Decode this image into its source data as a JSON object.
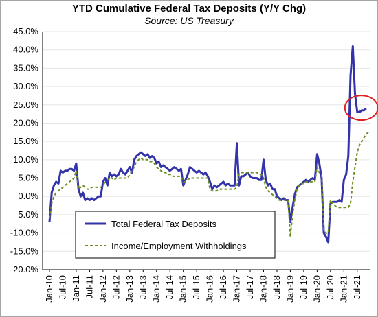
{
  "chart_data": {
    "type": "line",
    "title": "YTD Cumulative Federal Tax Deposits (Y/Y Chg)",
    "subtitle": "Source: US Treasury",
    "xlabel": "",
    "ylabel": "",
    "ylim": [
      -20,
      45
    ],
    "yticks": [
      "45.0%",
      "40.0%",
      "35.0%",
      "30.0%",
      "25.0%",
      "20.0%",
      "15.0%",
      "10.0%",
      "5.0%",
      "0.0%",
      "-5.0%",
      "-10.0%",
      "-15.0%",
      "-20.0%"
    ],
    "xlim": [
      "2010-01",
      "2021-12"
    ],
    "xticks": [
      "Jan-10",
      "Jul-10",
      "Jan-11",
      "Jul-11",
      "Jan-12",
      "Jul-12",
      "Jan-13",
      "Jul-13",
      "Jan-14",
      "Jul-14",
      "Jan-15",
      "Jul-15",
      "Jan-16",
      "Jul-16",
      "Jan-17",
      "Jul-17",
      "Jan-18",
      "Jul-18",
      "Jan-19",
      "Jul-19",
      "Jan-20",
      "Jul-20",
      "Jan-21",
      "Jul-21"
    ],
    "grid": "horizontal",
    "legend_position": "bottom-left",
    "annotation": "red circle around latest Total Federal Tax Deposits values",
    "series": [
      {
        "name": "Total Federal Tax Deposits",
        "color": "#3333aa",
        "style": "solid",
        "points": [
          [
            "2010-01",
            -7
          ],
          [
            "2010-02",
            1
          ],
          [
            "2010-03",
            3
          ],
          [
            "2010-04",
            4
          ],
          [
            "2010-05",
            3.5
          ],
          [
            "2010-06",
            7
          ],
          [
            "2010-07",
            6.5
          ],
          [
            "2010-08",
            7
          ],
          [
            "2010-09",
            7
          ],
          [
            "2010-10",
            7.5
          ],
          [
            "2010-11",
            7.5
          ],
          [
            "2010-12",
            7
          ],
          [
            "2011-01",
            9
          ],
          [
            "2011-02",
            2
          ],
          [
            "2011-03",
            0
          ],
          [
            "2011-04",
            1
          ],
          [
            "2011-05",
            -1
          ],
          [
            "2011-06",
            -0.5
          ],
          [
            "2011-07",
            -1
          ],
          [
            "2011-08",
            -0.5
          ],
          [
            "2011-09",
            -1
          ],
          [
            "2011-10",
            -0.5
          ],
          [
            "2011-11",
            0
          ],
          [
            "2011-12",
            0
          ],
          [
            "2012-01",
            4
          ],
          [
            "2012-02",
            5
          ],
          [
            "2012-03",
            3
          ],
          [
            "2012-04",
            6.5
          ],
          [
            "2012-05",
            5.5
          ],
          [
            "2012-06",
            6
          ],
          [
            "2012-07",
            5.5
          ],
          [
            "2012-08",
            6
          ],
          [
            "2012-09",
            7.5
          ],
          [
            "2012-10",
            6.5
          ],
          [
            "2012-11",
            6
          ],
          [
            "2012-12",
            7
          ],
          [
            "2013-01",
            8
          ],
          [
            "2013-02",
            6.5
          ],
          [
            "2013-03",
            10
          ],
          [
            "2013-04",
            11
          ],
          [
            "2013-05",
            11.5
          ],
          [
            "2013-06",
            12
          ],
          [
            "2013-07",
            11.5
          ],
          [
            "2013-08",
            11
          ],
          [
            "2013-09",
            11.5
          ],
          [
            "2013-10",
            10.5
          ],
          [
            "2013-11",
            11
          ],
          [
            "2013-12",
            10.5
          ],
          [
            "2014-01",
            9
          ],
          [
            "2014-02",
            9.5
          ],
          [
            "2014-03",
            8
          ],
          [
            "2014-04",
            8.5
          ],
          [
            "2014-05",
            8
          ],
          [
            "2014-06",
            7.5
          ],
          [
            "2014-07",
            7
          ],
          [
            "2014-08",
            7.5
          ],
          [
            "2014-09",
            8
          ],
          [
            "2014-10",
            7.5
          ],
          [
            "2014-11",
            7
          ],
          [
            "2014-12",
            7.5
          ],
          [
            "2015-01",
            3
          ],
          [
            "2015-02",
            4.5
          ],
          [
            "2015-03",
            6
          ],
          [
            "2015-04",
            8
          ],
          [
            "2015-05",
            7.5
          ],
          [
            "2015-06",
            7
          ],
          [
            "2015-07",
            6.5
          ],
          [
            "2015-08",
            7
          ],
          [
            "2015-09",
            6.5
          ],
          [
            "2015-10",
            6
          ],
          [
            "2015-11",
            6.5
          ],
          [
            "2015-12",
            5.5
          ],
          [
            "2016-01",
            4
          ],
          [
            "2016-02",
            2
          ],
          [
            "2016-03",
            3
          ],
          [
            "2016-04",
            2.5
          ],
          [
            "2016-05",
            3
          ],
          [
            "2016-06",
            3.5
          ],
          [
            "2016-07",
            4
          ],
          [
            "2016-08",
            3
          ],
          [
            "2016-09",
            3.5
          ],
          [
            "2016-10",
            3
          ],
          [
            "2016-11",
            3
          ],
          [
            "2016-12",
            3
          ],
          [
            "2017-01",
            14.5
          ],
          [
            "2017-02",
            3
          ],
          [
            "2017-03",
            5.5
          ],
          [
            "2017-04",
            5.5
          ],
          [
            "2017-05",
            6
          ],
          [
            "2017-06",
            6.5
          ],
          [
            "2017-07",
            5.5
          ],
          [
            "2017-08",
            5
          ],
          [
            "2017-09",
            5
          ],
          [
            "2017-10",
            5
          ],
          [
            "2017-11",
            4.5
          ],
          [
            "2017-12",
            4.5
          ],
          [
            "2018-01",
            10
          ],
          [
            "2018-02",
            4.5
          ],
          [
            "2018-03",
            3
          ],
          [
            "2018-04",
            3.5
          ],
          [
            "2018-05",
            2
          ],
          [
            "2018-06",
            2
          ],
          [
            "2018-07",
            0
          ],
          [
            "2018-08",
            -0.5
          ],
          [
            "2018-09",
            -1
          ],
          [
            "2018-10",
            -0.5
          ],
          [
            "2018-11",
            -1
          ],
          [
            "2018-12",
            -1
          ],
          [
            "2019-01",
            -7
          ],
          [
            "2019-02",
            -3
          ],
          [
            "2019-03",
            0.5
          ],
          [
            "2019-04",
            2.5
          ],
          [
            "2019-05",
            3
          ],
          [
            "2019-06",
            3.5
          ],
          [
            "2019-07",
            4
          ],
          [
            "2019-08",
            4.5
          ],
          [
            "2019-09",
            4
          ],
          [
            "2019-10",
            4.5
          ],
          [
            "2019-11",
            5
          ],
          [
            "2019-12",
            4.5
          ],
          [
            "2020-01",
            11.5
          ],
          [
            "2020-02",
            9
          ],
          [
            "2020-03",
            5
          ],
          [
            "2020-04",
            -10
          ],
          [
            "2020-05",
            -11
          ],
          [
            "2020-06",
            -12.5
          ],
          [
            "2020-07",
            -2
          ],
          [
            "2020-08",
            -1.5
          ],
          [
            "2020-09",
            -1.5
          ],
          [
            "2020-10",
            -1.5
          ],
          [
            "2020-11",
            -1
          ],
          [
            "2020-12",
            -1.5
          ],
          [
            "2021-01",
            4.5
          ],
          [
            "2021-02",
            6
          ],
          [
            "2021-03",
            11
          ],
          [
            "2021-04",
            33
          ],
          [
            "2021-05",
            41
          ],
          [
            "2021-06",
            28
          ],
          [
            "2021-07",
            23
          ],
          [
            "2021-08",
            23
          ],
          [
            "2021-09",
            23.5
          ],
          [
            "2021-10",
            23.5
          ],
          [
            "2021-11",
            24
          ]
        ]
      },
      {
        "name": "Income/Employment Withholdings",
        "color": "#6b8e23",
        "style": "dashed",
        "points": [
          [
            "2010-01",
            -6
          ],
          [
            "2010-02",
            -2
          ],
          [
            "2010-03",
            0
          ],
          [
            "2010-04",
            1
          ],
          [
            "2010-05",
            1.5
          ],
          [
            "2010-06",
            2
          ],
          [
            "2010-07",
            2.5
          ],
          [
            "2010-08",
            3
          ],
          [
            "2010-09",
            3.5
          ],
          [
            "2010-10",
            4
          ],
          [
            "2010-11",
            4.5
          ],
          [
            "2010-12",
            5
          ],
          [
            "2011-01",
            7
          ],
          [
            "2011-02",
            2
          ],
          [
            "2011-03",
            2.5
          ],
          [
            "2011-04",
            3
          ],
          [
            "2011-05",
            2.5
          ],
          [
            "2011-06",
            2
          ],
          [
            "2011-07",
            2
          ],
          [
            "2011-08",
            2.5
          ],
          [
            "2011-09",
            2.5
          ],
          [
            "2011-10",
            2.5
          ],
          [
            "2011-11",
            2.5
          ],
          [
            "2011-12",
            2.5
          ],
          [
            "2012-01",
            3
          ],
          [
            "2012-02",
            4
          ],
          [
            "2012-03",
            4.5
          ],
          [
            "2012-04",
            5
          ],
          [
            "2012-05",
            5
          ],
          [
            "2012-06",
            4.5
          ],
          [
            "2012-07",
            5
          ],
          [
            "2012-08",
            5
          ],
          [
            "2012-09",
            5
          ],
          [
            "2012-10",
            5
          ],
          [
            "2012-11",
            5
          ],
          [
            "2012-12",
            5
          ],
          [
            "2013-01",
            6
          ],
          [
            "2013-02",
            7
          ],
          [
            "2013-03",
            8
          ],
          [
            "2013-04",
            9.5
          ],
          [
            "2013-05",
            10
          ],
          [
            "2013-06",
            10.5
          ],
          [
            "2013-07",
            10
          ],
          [
            "2013-08",
            10
          ],
          [
            "2013-09",
            10
          ],
          [
            "2013-10",
            9.5
          ],
          [
            "2013-11",
            9.5
          ],
          [
            "2013-12",
            9
          ],
          [
            "2014-01",
            8
          ],
          [
            "2014-02",
            7.5
          ],
          [
            "2014-03",
            7
          ],
          [
            "2014-04",
            6.5
          ],
          [
            "2014-05",
            6.5
          ],
          [
            "2014-06",
            6
          ],
          [
            "2014-07",
            6
          ],
          [
            "2014-08",
            5.5
          ],
          [
            "2014-09",
            5.5
          ],
          [
            "2014-10",
            5.5
          ],
          [
            "2014-11",
            5.5
          ],
          [
            "2014-12",
            5.5
          ],
          [
            "2015-01",
            4
          ],
          [
            "2015-02",
            4
          ],
          [
            "2015-03",
            4.5
          ],
          [
            "2015-04",
            5
          ],
          [
            "2015-05",
            5
          ],
          [
            "2015-06",
            5
          ],
          [
            "2015-07",
            5
          ],
          [
            "2015-08",
            5
          ],
          [
            "2015-09",
            5
          ],
          [
            "2015-10",
            5
          ],
          [
            "2015-11",
            5
          ],
          [
            "2015-12",
            5
          ],
          [
            "2016-01",
            2
          ],
          [
            "2016-02",
            1.5
          ],
          [
            "2016-03",
            1.5
          ],
          [
            "2016-04",
            1.5
          ],
          [
            "2016-05",
            2
          ],
          [
            "2016-06",
            2
          ],
          [
            "2016-07",
            2
          ],
          [
            "2016-08",
            2
          ],
          [
            "2016-09",
            2
          ],
          [
            "2016-10",
            2
          ],
          [
            "2016-11",
            2
          ],
          [
            "2016-12",
            2
          ],
          [
            "2017-01",
            2.5
          ],
          [
            "2017-02",
            6
          ],
          [
            "2017-03",
            6.5
          ],
          [
            "2017-04",
            6.5
          ],
          [
            "2017-05",
            6.5
          ],
          [
            "2017-06",
            6.5
          ],
          [
            "2017-07",
            6.5
          ],
          [
            "2017-08",
            6.5
          ],
          [
            "2017-09",
            6.5
          ],
          [
            "2017-10",
            6.5
          ],
          [
            "2017-11",
            6
          ],
          [
            "2017-12",
            6
          ],
          [
            "2018-01",
            5
          ],
          [
            "2018-02",
            2.5
          ],
          [
            "2018-03",
            1.5
          ],
          [
            "2018-04",
            1
          ],
          [
            "2018-05",
            0.5
          ],
          [
            "2018-06",
            0
          ],
          [
            "2018-07",
            -0.5
          ],
          [
            "2018-08",
            -1
          ],
          [
            "2018-09",
            -1
          ],
          [
            "2018-10",
            -1
          ],
          [
            "2018-11",
            -1
          ],
          [
            "2018-12",
            -1
          ],
          [
            "2019-01",
            -11
          ],
          [
            "2019-02",
            -5
          ],
          [
            "2019-03",
            -1
          ],
          [
            "2019-04",
            2
          ],
          [
            "2019-05",
            3
          ],
          [
            "2019-06",
            3.5
          ],
          [
            "2019-07",
            3.5
          ],
          [
            "2019-08",
            4
          ],
          [
            "2019-09",
            4
          ],
          [
            "2019-10",
            4
          ],
          [
            "2019-11",
            4
          ],
          [
            "2019-12",
            4
          ],
          [
            "2020-01",
            8
          ],
          [
            "2020-02",
            6.5
          ],
          [
            "2020-03",
            6
          ],
          [
            "2020-04",
            -9
          ],
          [
            "2020-05",
            -10
          ],
          [
            "2020-06",
            -10
          ],
          [
            "2020-07",
            -1
          ],
          [
            "2020-08",
            -2
          ],
          [
            "2020-09",
            -2.5
          ],
          [
            "2020-10",
            -3
          ],
          [
            "2020-11",
            -3
          ],
          [
            "2020-12",
            -3
          ],
          [
            "2021-01",
            -3
          ],
          [
            "2021-02",
            -3
          ],
          [
            "2021-03",
            -3
          ],
          [
            "2021-04",
            -2
          ],
          [
            "2021-05",
            4
          ],
          [
            "2021-06",
            8
          ],
          [
            "2021-07",
            12
          ],
          [
            "2021-08",
            14
          ],
          [
            "2021-09",
            15
          ],
          [
            "2021-10",
            16
          ],
          [
            "2021-11",
            17
          ],
          [
            "2021-12",
            17.5
          ]
        ]
      }
    ]
  }
}
